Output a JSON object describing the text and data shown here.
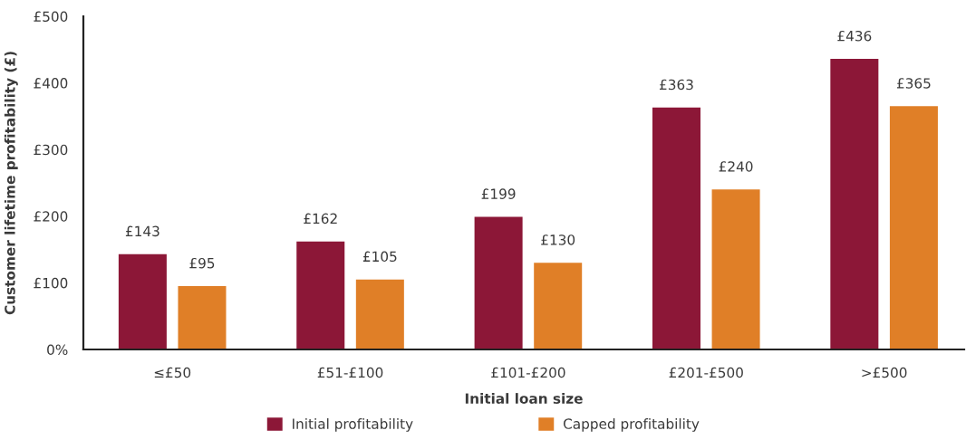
{
  "chart_data": {
    "type": "bar",
    "xlabel": "Initial loan size",
    "ylabel": "Customer lifetime profitability (£)",
    "categories": [
      "≤£50",
      "£51-£100",
      "£101-£200",
      "£201-£500",
      ">£500"
    ],
    "series": [
      {
        "name": "Initial profitability",
        "color": "#8c1737",
        "values": [
          143,
          162,
          199,
          363,
          436
        ],
        "value_labels": [
          "£143",
          "£162",
          "£199",
          "£363",
          "£436"
        ]
      },
      {
        "name": "Capped profitability",
        "color": "#e07f27",
        "values": [
          95,
          105,
          130,
          240,
          365
        ],
        "value_labels": [
          "£95",
          "£105",
          "£130",
          "£240",
          "£365"
        ]
      }
    ],
    "ylim": [
      0,
      500
    ],
    "yticks": [
      {
        "value": 0,
        "label": "0%"
      },
      {
        "value": 100,
        "label": "£100"
      },
      {
        "value": 200,
        "label": "£200"
      },
      {
        "value": 300,
        "label": "£300"
      },
      {
        "value": 400,
        "label": "£400"
      },
      {
        "value": 500,
        "label": "£500"
      }
    ],
    "grid": false,
    "legend": "bottom"
  }
}
